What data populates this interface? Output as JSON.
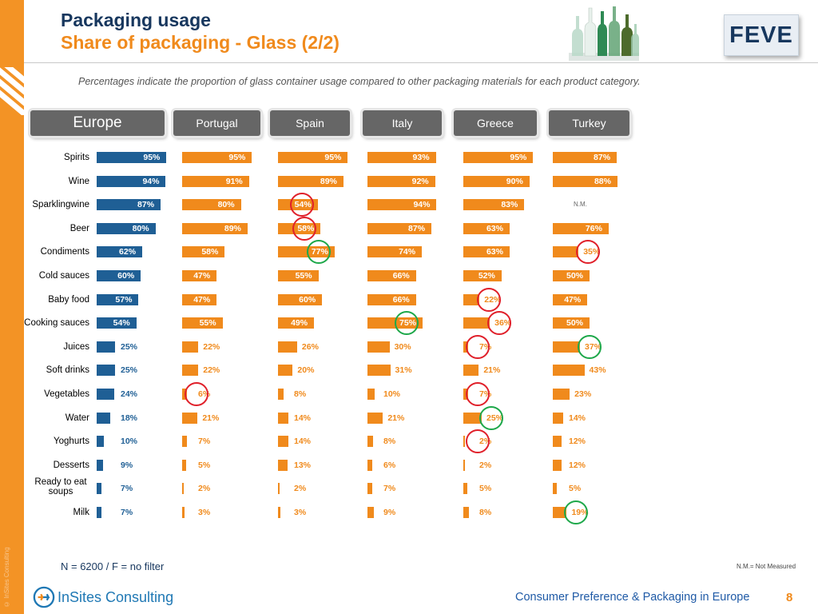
{
  "header": {
    "title": "Packaging usage",
    "subtitle": "Share of packaging - Glass (2/2)",
    "description": "Percentages indicate the proportion of glass container usage compared to other packaging materials for each product category.",
    "logo_text": "FEVE"
  },
  "sidebar": {
    "copyright": "© InSites Consulting"
  },
  "footer": {
    "sample_note": "N =  6200 / F = no filter",
    "nm_note": "N.M.= Not Measured",
    "company": "InSites Consulting",
    "title": "Consumer Preference & Packaging in Europe",
    "page_number": "8"
  },
  "chart_data": {
    "type": "bar",
    "orientation": "horizontal",
    "value_unit": "%",
    "categories": [
      "Spirits",
      "Wine",
      "Sparklingwine",
      "Beer",
      "Condiments",
      "Cold sauces",
      "Baby food",
      "Cooking sauces",
      "Juices",
      "Soft drinks",
      "Vegetables",
      "Water",
      "Yoghurts",
      "Desserts",
      "Ready to eat soups",
      "Milk"
    ],
    "not_measured_label": "N.M.",
    "series": [
      {
        "name": "Europe",
        "color": "#1f5f95",
        "values": [
          95,
          94,
          87,
          80,
          62,
          60,
          57,
          54,
          25,
          25,
          24,
          18,
          10,
          9,
          7,
          7
        ]
      },
      {
        "name": "Portugal",
        "color": "#f08a1c",
        "values": [
          95,
          91,
          80,
          89,
          58,
          47,
          47,
          55,
          22,
          22,
          6,
          21,
          7,
          5,
          2,
          3
        ]
      },
      {
        "name": "Spain",
        "color": "#f08a1c",
        "values": [
          95,
          89,
          54,
          58,
          77,
          55,
          60,
          49,
          26,
          20,
          8,
          14,
          14,
          13,
          2,
          3
        ]
      },
      {
        "name": "Italy",
        "color": "#f08a1c",
        "values": [
          93,
          92,
          94,
          87,
          74,
          66,
          66,
          75,
          30,
          31,
          10,
          21,
          8,
          6,
          7,
          9
        ]
      },
      {
        "name": "Greece",
        "color": "#f08a1c",
        "values": [
          95,
          90,
          83,
          63,
          63,
          52,
          22,
          36,
          7,
          21,
          7,
          25,
          2,
          2,
          5,
          8
        ]
      },
      {
        "name": "Turkey",
        "color": "#f08a1c",
        "values": [
          87,
          88,
          null,
          76,
          35,
          50,
          47,
          50,
          37,
          43,
          23,
          14,
          12,
          12,
          5,
          19
        ]
      }
    ],
    "highlights": {
      "red": [
        {
          "series": "Spain",
          "category": "Sparklingwine"
        },
        {
          "series": "Spain",
          "category": "Beer"
        },
        {
          "series": "Greece",
          "category": "Baby food"
        },
        {
          "series": "Greece",
          "category": "Cooking sauces"
        },
        {
          "series": "Greece",
          "category": "Juices"
        },
        {
          "series": "Portugal",
          "category": "Vegetables"
        },
        {
          "series": "Greece",
          "category": "Vegetables"
        },
        {
          "series": "Greece",
          "category": "Yoghurts"
        },
        {
          "series": "Turkey",
          "category": "Condiments"
        }
      ],
      "green": [
        {
          "series": "Spain",
          "category": "Condiments"
        },
        {
          "series": "Italy",
          "category": "Cooking sauces"
        },
        {
          "series": "Turkey",
          "category": "Juices"
        },
        {
          "series": "Greece",
          "category": "Water"
        },
        {
          "series": "Turkey",
          "category": "Milk"
        }
      ]
    },
    "colors": {
      "red_circle": "#e0202a",
      "green_circle": "#1ea84a"
    }
  }
}
